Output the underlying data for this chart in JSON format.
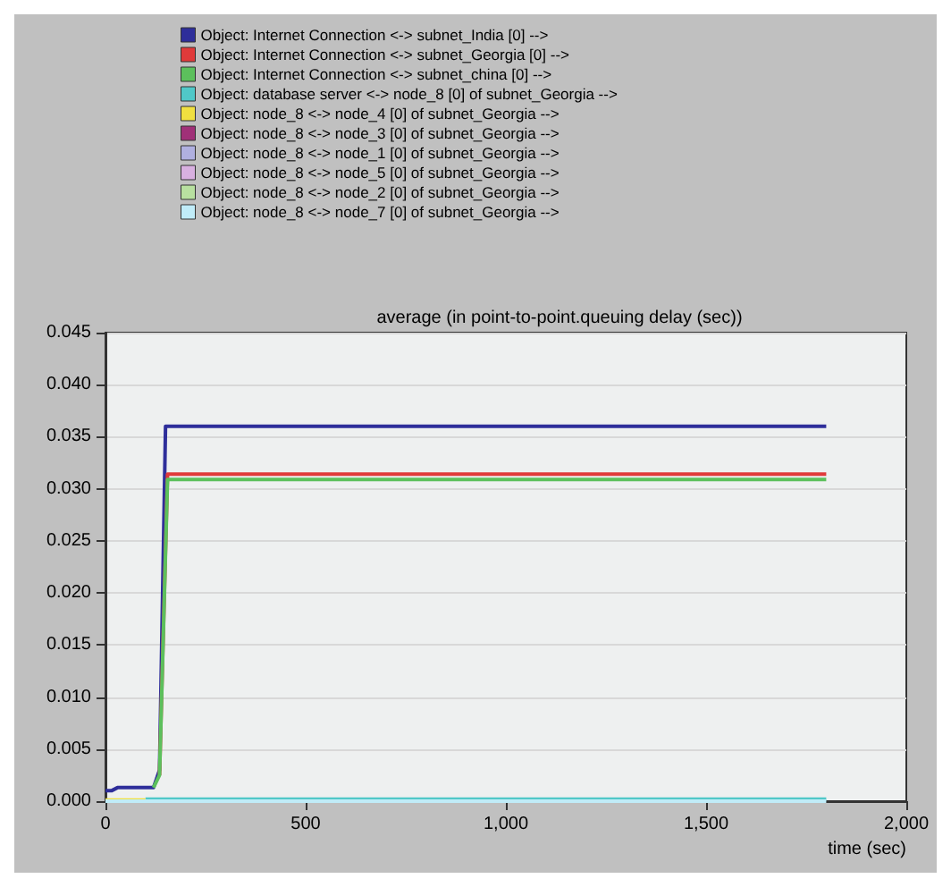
{
  "chart_data": {
    "type": "line",
    "title": "average (in point-to-point.queuing delay (sec))",
    "xlabel": "time (sec)",
    "xlim": [
      0,
      2000
    ],
    "xticks": [
      0,
      500,
      {
        "value": 1000,
        "label": "1,000"
      },
      {
        "value": 1500,
        "label": "1,500"
      },
      {
        "value": 2000,
        "label": "2,000"
      }
    ],
    "ylim": [
      0,
      0.045
    ],
    "yticks": [
      {
        "value": 0,
        "label": "0.000"
      },
      {
        "value": 0.005,
        "label": "0.005"
      },
      {
        "value": 0.01,
        "label": "0.010"
      },
      {
        "value": 0.015,
        "label": "0.015"
      },
      {
        "value": 0.02,
        "label": "0.020"
      },
      {
        "value": 0.025,
        "label": "0.025"
      },
      {
        "value": 0.03,
        "label": "0.030"
      },
      {
        "value": 0.035,
        "label": "0.035"
      },
      {
        "value": 0.04,
        "label": "0.040"
      },
      {
        "value": 0.045,
        "label": "0.045"
      }
    ],
    "grid": "y",
    "legend": "top",
    "marker": "none",
    "line_style": "solid",
    "series": [
      {
        "name": "Object: Internet Connection <-> subnet_India [0] -->",
        "color": "#2e2e9a",
        "x": [
          0,
          15,
          30,
          120,
          135,
          150,
          1800
        ],
        "values": [
          0.001,
          0.001,
          0.0013,
          0.0013,
          0.003,
          0.036,
          0.036
        ]
      },
      {
        "name": "Object: Internet Connection <-> subnet_Georgia [0] -->",
        "color": "#e03a3a",
        "x": [
          135,
          155,
          1800
        ],
        "values": [
          0.0025,
          0.0314,
          0.0314
        ]
      },
      {
        "name": "Object: Internet Connection <-> subnet_china [0] -->",
        "color": "#5cc05c",
        "x": [
          120,
          135,
          155,
          1800
        ],
        "values": [
          0.0013,
          0.0025,
          0.0309,
          0.0309
        ]
      },
      {
        "name": "Object: database server <-> node_8 [0] of subnet_Georgia -->",
        "color": "#50c8c8",
        "x": [
          100,
          1800
        ],
        "values": [
          0.0002,
          0.0002
        ]
      },
      {
        "name": "Object: node_8 <-> node_4 [0] of subnet_Georgia -->",
        "color": "#f0e040",
        "x": [
          0,
          100
        ],
        "values": [
          0.0001,
          0.0001
        ]
      },
      {
        "name": "Object: node_8 <-> node_3 [0] of subnet_Georgia -->",
        "color": "#a03078"
      },
      {
        "name": "Object: node_8 <-> node_1 [0] of subnet_Georgia -->",
        "color": "#b0b0e0"
      },
      {
        "name": "Object: node_8 <-> node_5 [0] of subnet_Georgia -->",
        "color": "#d8b0e0"
      },
      {
        "name": "Object: node_8 <-> node_2 [0] of subnet_Georgia -->",
        "color": "#b8e0a0"
      },
      {
        "name": "Object: node_8 <-> node_7 [0] of subnet_Georgia -->",
        "color": "#c0ecf8",
        "x": [
          0,
          1800
        ],
        "values": [
          0,
          0
        ]
      }
    ]
  }
}
